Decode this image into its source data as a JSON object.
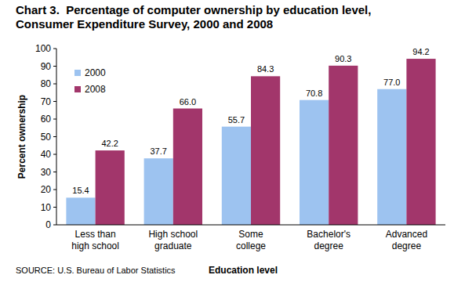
{
  "chart_data": {
    "type": "bar",
    "title": "Chart 3.  Percentage of computer ownership by education level, Consumer Expenditure Survey, 2000 and 2008",
    "source": "SOURCE: U.S. Bureau of Labor Statistics",
    "x_label": "Education level",
    "y_label": "Percent ownership",
    "categories": [
      "Less than high school",
      "High school graduate",
      "Some college",
      "Bachelor's degree",
      "Advanced degree"
    ],
    "series": [
      {
        "name": "2000",
        "color": "#9dc3f0",
        "values": [
          15.4,
          37.7,
          55.7,
          70.8,
          77.0
        ],
        "value_labels": [
          "15.4",
          "37.7",
          "55.7",
          "70.8",
          "77.0"
        ]
      },
      {
        "name": "2008",
        "color": "#a2366b",
        "values": [
          42.2,
          66.0,
          84.3,
          90.3,
          94.2
        ],
        "value_labels": [
          "42.2",
          "66.0",
          "84.3",
          "90.3",
          "94.2"
        ]
      }
    ],
    "ylim": [
      0,
      100
    ],
    "yticks": [
      0,
      10,
      20,
      30,
      40,
      50,
      60,
      70,
      80,
      90,
      100
    ],
    "grid": false,
    "legend": "upper left",
    "data_labels": true
  }
}
